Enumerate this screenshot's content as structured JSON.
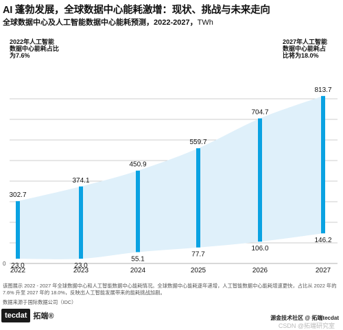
{
  "title": "AI 蓬勃发展，全球数据中心能耗激增：现状、挑战与未来走向",
  "subtitle": "全球数据中心及人工智能数据中心能耗预测，2022-2027，",
  "unit": "TWh",
  "note_left": "2022年人工智能\n数据中心能耗占比\n为7.6%",
  "note_right": "2027年人工智能\n数据中心能耗占\n比将为18.0%",
  "description": "该图展示 2022 - 2027 年全球数据中心和人工智能数据中心能耗情况。全球数据中心能耗逐年递增，人工智能数据中心能耗增速更快，占比从 2022 年的 7.6% 升至 2027 年的 18.0%，反映出人工智能发展带来的能耗挑战加剧。",
  "source": "数据来源于国际数据公司（IDC）",
  "logo": {
    "badge": "tecdat",
    "name": "拓端®"
  },
  "watermark": {
    "line1": "源金技术社区 @ 拓端tecdat",
    "line2": "CSDN @拓端研究室"
  },
  "colors": {
    "bar": "#0aa2e2",
    "band": "#dff0fa",
    "grid": "#999999",
    "text": "#111111"
  },
  "chart_data": {
    "type": "range-bar",
    "categories": [
      "2022",
      "2023",
      "2024",
      "2025",
      "2026",
      "2027"
    ],
    "series": [
      {
        "name": "全球数据中心",
        "values": [
          302.7,
          374.1,
          450.9,
          559.7,
          704.7,
          813.7
        ]
      },
      {
        "name": "人工智能数据中心",
        "values": [
          23.0,
          23.0,
          55.1,
          77.7,
          106.0,
          146.2
        ]
      }
    ],
    "ylim": [
      0,
      900
    ],
    "y_ticks": [
      0,
      100,
      200,
      300,
      400,
      500,
      600,
      700,
      800
    ],
    "y_tick_labels_shown": [
      "0"
    ],
    "grid": true,
    "title": "全球数据中心及人工智能数据中心能耗预测，2022-2027，",
    "unit": "TWh"
  }
}
